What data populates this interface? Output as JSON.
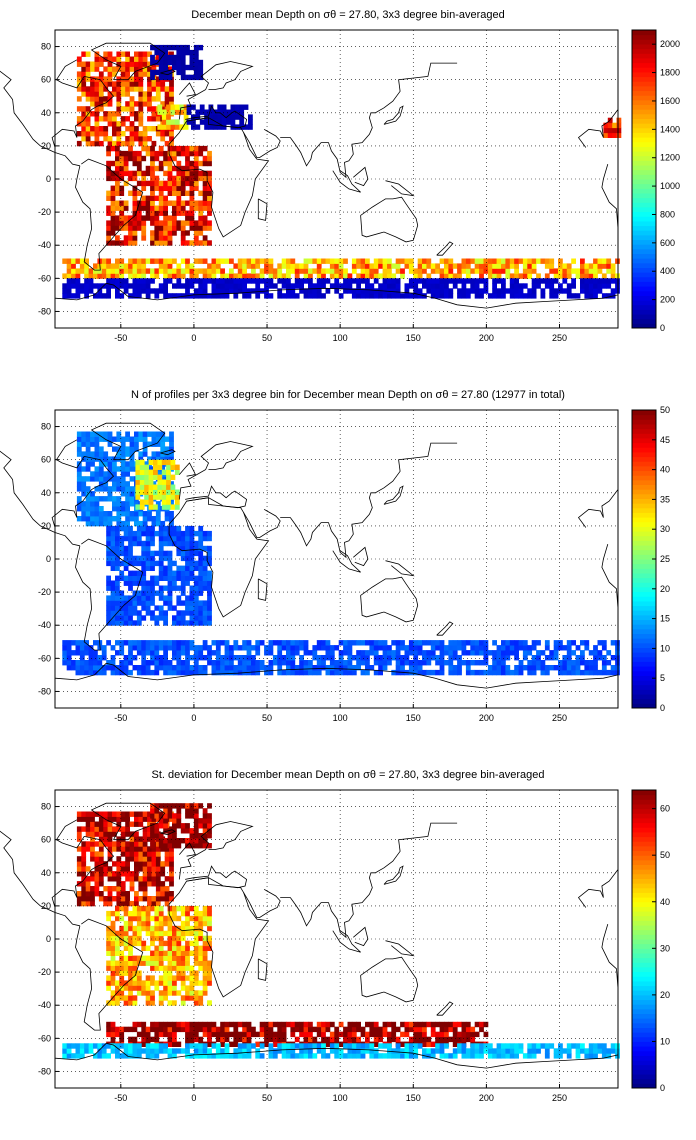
{
  "chart_data": [
    {
      "type": "heatmap",
      "title": "December mean Depth on σθ = 27.80, 3x3 degree bin-averaged",
      "xlim": [
        -95,
        290
      ],
      "ylim": [
        -90,
        90
      ],
      "xticks": [
        -50,
        0,
        50,
        100,
        150,
        200,
        250
      ],
      "yticks": [
        80,
        60,
        40,
        20,
        0,
        -20,
        -40,
        -60,
        -80
      ],
      "grid": true,
      "colorbar": {
        "min": 0,
        "max": 2100,
        "ticks": [
          0,
          200,
          400,
          600,
          800,
          1000,
          1200,
          1400,
          1600,
          1800,
          2000
        ]
      },
      "regions": [
        {
          "lon": [
            -80,
            -15
          ],
          "lat": [
            20,
            75
          ],
          "value": 1750
        },
        {
          "lon": [
            -25,
            -5
          ],
          "lat": [
            30,
            45
          ],
          "value": 1400
        },
        {
          "lon": [
            -60,
            10
          ],
          "lat": [
            -40,
            20
          ],
          "value": 1850
        },
        {
          "lon": [
            -30,
            5
          ],
          "lat": [
            60,
            80
          ],
          "value": 80
        },
        {
          "lon": [
            -5,
            40
          ],
          "lat": [
            30,
            45
          ],
          "value": 100
        },
        {
          "lon": [
            -90,
            290
          ],
          "lat": [
            -60,
            -50
          ],
          "value": 1500
        },
        {
          "lon": [
            -90,
            290
          ],
          "lat": [
            -72,
            -60
          ],
          "value": 150
        },
        {
          "lon": [
            280,
            290
          ],
          "lat": [
            25,
            35
          ],
          "value": 1800
        }
      ]
    },
    {
      "type": "heatmap",
      "title": "N of profiles per 3x3 degree bin for December mean Depth on σθ = 27.80 (12977 in total)",
      "xlim": [
        -95,
        290
      ],
      "ylim": [
        -90,
        90
      ],
      "xticks": [
        -50,
        0,
        50,
        100,
        150,
        200,
        250
      ],
      "yticks": [
        80,
        60,
        40,
        20,
        0,
        -20,
        -40,
        -60,
        -80
      ],
      "grid": true,
      "colorbar": {
        "min": 0,
        "max": 50,
        "ticks": [
          0,
          5,
          10,
          15,
          20,
          25,
          30,
          35,
          40,
          45,
          50
        ]
      },
      "regions": [
        {
          "lon": [
            -80,
            -15
          ],
          "lat": [
            20,
            75
          ],
          "value": 12
        },
        {
          "lon": [
            -40,
            -10
          ],
          "lat": [
            30,
            60
          ],
          "value": 30
        },
        {
          "lon": [
            -60,
            10
          ],
          "lat": [
            -40,
            20
          ],
          "value": 10
        },
        {
          "lon": [
            -90,
            290
          ],
          "lat": [
            -70,
            -50
          ],
          "value": 10
        }
      ]
    },
    {
      "type": "heatmap",
      "title": "St. deviation for December mean Depth on σθ = 27.80, 3x3 degree bin-averaged",
      "xlim": [
        -95,
        290
      ],
      "ylim": [
        -90,
        90
      ],
      "xticks": [
        -50,
        0,
        50,
        100,
        150,
        200,
        250
      ],
      "yticks": [
        80,
        60,
        40,
        20,
        0,
        -20,
        -40,
        -60,
        -80
      ],
      "grid": true,
      "colorbar": {
        "min": 0,
        "max": 64,
        "ticks": [
          0,
          10,
          20,
          30,
          40,
          50,
          60
        ]
      },
      "regions": [
        {
          "lon": [
            -80,
            -15
          ],
          "lat": [
            20,
            75
          ],
          "value": 60
        },
        {
          "lon": [
            -30,
            10
          ],
          "lat": [
            55,
            80
          ],
          "value": 64
        },
        {
          "lon": [
            -60,
            10
          ],
          "lat": [
            -40,
            20
          ],
          "value": 45
        },
        {
          "lon": [
            -60,
            200
          ],
          "lat": [
            -65,
            -50
          ],
          "value": 64
        },
        {
          "lon": [
            -90,
            290
          ],
          "lat": [
            -72,
            -65
          ],
          "value": 20
        }
      ]
    }
  ]
}
